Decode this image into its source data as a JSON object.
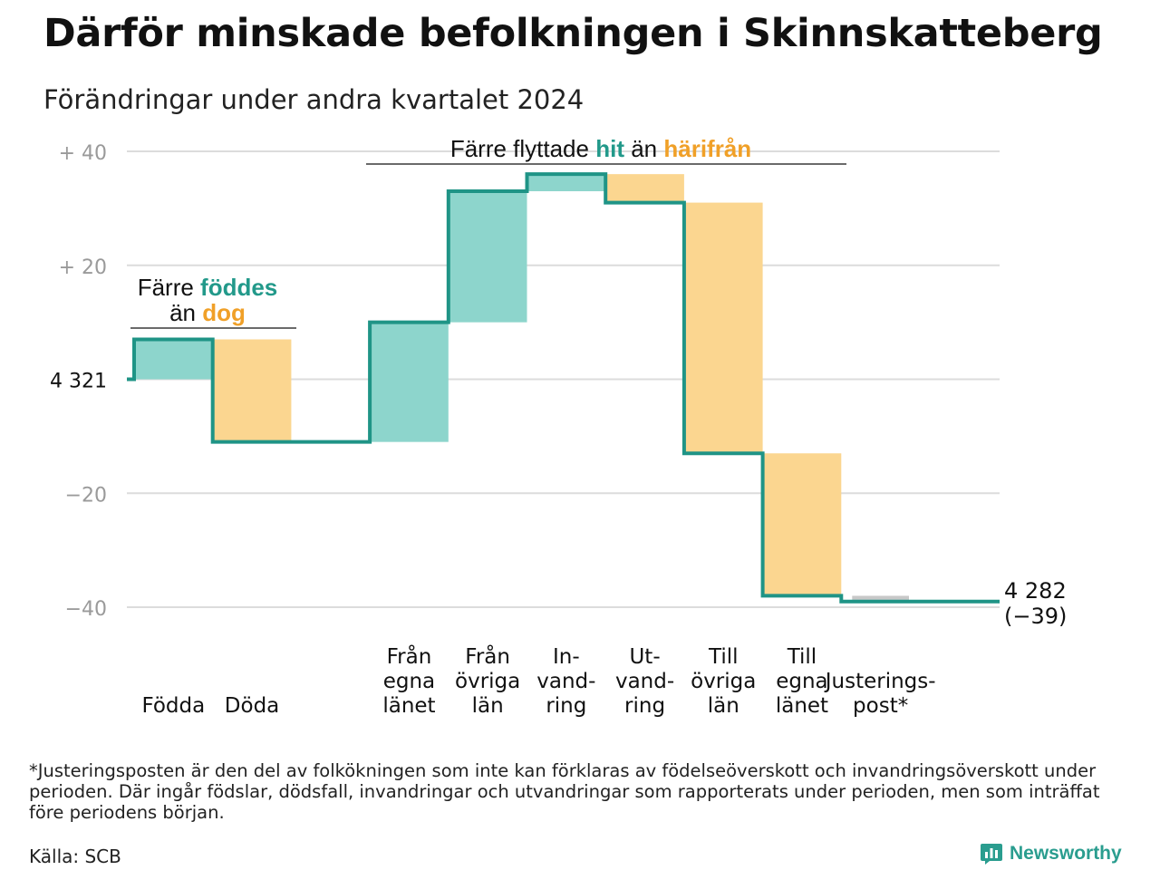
{
  "header": {
    "title": "Därför minskade befolkningen i Skinnskatteberg",
    "subtitle": "Förändringar under andra kvartalet 2024"
  },
  "chart_data": {
    "type": "waterfall",
    "start_label": "4 321",
    "start_population": 4321,
    "end_label_lines": [
      "4 282",
      "(−39)"
    ],
    "end_population": 4282,
    "net_change": -39,
    "ylim": [
      -40,
      40
    ],
    "yticks": [
      {
        "value": 40,
        "label": "+ 40"
      },
      {
        "value": 20,
        "label": "+ 20"
      },
      {
        "value": 0,
        "label": "4 321"
      },
      {
        "value": -20,
        "label": "−20"
      },
      {
        "value": -40,
        "label": "−40"
      }
    ],
    "grid": true,
    "steps": [
      {
        "name": "Födda",
        "label_lines": [
          "Födda"
        ],
        "value": 7,
        "kind": "in"
      },
      {
        "name": "Döda",
        "label_lines": [
          "Döda"
        ],
        "value": -18,
        "kind": "out"
      },
      {
        "name": "",
        "label_lines": [],
        "value": 0,
        "kind": "none"
      },
      {
        "name": "Från egna länet",
        "label_lines": [
          "Från",
          "egna",
          "länet"
        ],
        "value": 21,
        "kind": "in"
      },
      {
        "name": "Från övriga län",
        "label_lines": [
          "Från",
          "övriga",
          "län"
        ],
        "value": 23,
        "kind": "in"
      },
      {
        "name": "In-vand-ring",
        "label_lines": [
          "In-",
          "vand-",
          "ring"
        ],
        "value": 3,
        "kind": "in"
      },
      {
        "name": "Ut-vand-ring",
        "label_lines": [
          "Ut-",
          "vand-",
          "ring"
        ],
        "value": -5,
        "kind": "out"
      },
      {
        "name": "Till övriga län",
        "label_lines": [
          "Till",
          "övriga",
          "län"
        ],
        "value": -44,
        "kind": "out"
      },
      {
        "name": "Till egna länet",
        "label_lines": [
          "Till",
          "egna",
          "länet"
        ],
        "value": -25,
        "kind": "out"
      },
      {
        "name": "Justeringspost*",
        "label_lines": [
          "Justerings-",
          "post*"
        ],
        "value": -1,
        "kind": "adjust"
      }
    ],
    "annotations": [
      {
        "id": "births",
        "lines": [
          [
            "Färre ",
            {
              "text": "föddes",
              "color": "teal"
            }
          ],
          [
            "än ",
            {
              "text": "dog",
              "color": "orange"
            }
          ]
        ]
      },
      {
        "id": "moves",
        "lines": [
          [
            "Färre flyttade ",
            {
              "text": "hit",
              "color": "teal"
            },
            " än ",
            {
              "text": "härifrån",
              "color": "orange"
            }
          ]
        ]
      }
    ],
    "colors": {
      "in_fill": "#8dd5cc",
      "out_fill": "#fbd690",
      "adjust_fill": "#c8c8c8",
      "line": "#1f9486",
      "teal_text": "#22998a",
      "orange_text": "#f0a028",
      "grid": "#dcdcdc",
      "tick_text": "#9a9a9a"
    }
  },
  "footnote": "*Justeringsposten är den del av folkökningen som inte kan förklaras av födelseöverskott och invandringsöverskott under perioden. Där ingår födslar, dödsfall, invandringar och utvandringar som rapporterats under perioden, men som inträffat före periodens början.",
  "source": "Källa: SCB",
  "logo": {
    "text": "Newsworthy",
    "icon": "newsworthy-logo-icon",
    "color": "#2a9d8f"
  }
}
